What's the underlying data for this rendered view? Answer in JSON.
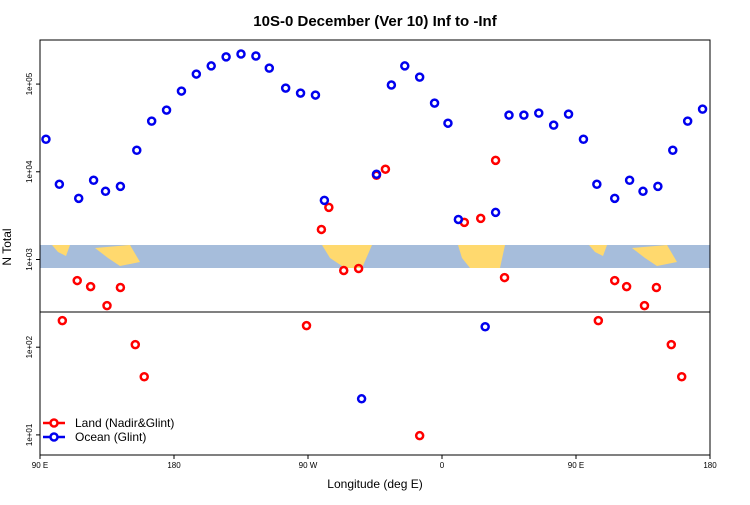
{
  "chart_data": {
    "type": "scatter",
    "title": "10S-0 December (Ver 10)   Inf to -Inf",
    "xlabel": "Longitude (deg E)",
    "ylabel": "N Total",
    "ylog": true,
    "legend": "bottom-left",
    "xlim": [
      90,
      540
    ],
    "xticks": [
      {
        "value": 90,
        "label": "90 E"
      },
      180,
      {
        "value": 270,
        "label": "90 W"
      },
      {
        "value": 360,
        "label": "0"
      },
      {
        "value": 450,
        "label": "90 E"
      },
      {
        "value": 540,
        "label": "180"
      }
    ],
    "ylim": [
      5.9,
      318000
    ],
    "yticks": [
      {
        "value": 10,
        "label": "1e+01"
      },
      {
        "value": 100,
        "label": "1e+02"
      },
      {
        "value": 1000,
        "label": "1e+03"
      },
      {
        "value": 10000,
        "label": "1e+04"
      },
      {
        "value": 100000,
        "label": "1e+05"
      }
    ],
    "series": [
      {
        "name": "Land (Nadir&Glint)",
        "color": "#ff0000",
        "x": [
          105,
          115,
          124,
          135,
          144,
          154,
          160,
          269,
          279,
          284,
          294,
          304,
          316,
          322,
          345,
          375,
          386,
          396,
          402,
          465,
          476,
          484,
          496,
          504,
          514,
          521
        ],
        "values": [
          201,
          575,
          491,
          298,
          479,
          107,
          46,
          176,
          2200,
          3930,
          748,
          789,
          9120,
          10700,
          9.8,
          2650,
          2940,
          13500,
          622,
          201,
          575,
          491,
          298,
          479,
          107,
          46
        ]
      },
      {
        "name": "Ocean (Glint)",
        "color": "#0000ee",
        "x": [
          94,
          103,
          116,
          126,
          134,
          144,
          155,
          165,
          175,
          185,
          195,
          205,
          215,
          225,
          235,
          244,
          255,
          265,
          275,
          281,
          316,
          326,
          335,
          345,
          355,
          364,
          371,
          396,
          405,
          415,
          425,
          435,
          445,
          455,
          464,
          476,
          486,
          495,
          505,
          515,
          525,
          535,
          306,
          389
        ],
        "values": [
          23500,
          7200,
          4980,
          8000,
          5990,
          6820,
          17600,
          37800,
          50500,
          83200,
          130000,
          161000,
          204000,
          220000,
          209000,
          152000,
          90000,
          78900,
          74900,
          4720,
          9360,
          97500,
          161000,
          120000,
          60700,
          35800,
          2860,
          3440,
          44200,
          44200,
          46600,
          34000,
          45400,
          23500,
          7200,
          4980,
          8000,
          5990,
          6820,
          17600,
          37800,
          51800,
          25.8,
          171
        ]
      }
    ]
  }
}
